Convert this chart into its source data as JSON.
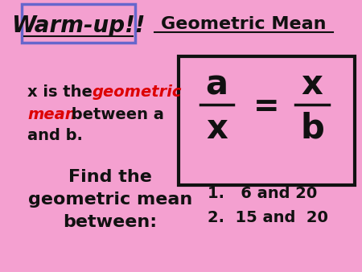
{
  "bg_color": "#F4A0D0",
  "title_warmup": "Warm-up!!",
  "title_geomean": "Geometric Mean",
  "warmup_box_color": "#6666CC",
  "text_color": "#111111",
  "red_color": "#DD0000",
  "formula_box_color": "#111111",
  "left_block": "x is the geometric\nmean between a\nand b.",
  "find_text": "Find the\ngeometric mean\nbetween:",
  "items": [
    "1.   6 and 20",
    "2.  15 and  20"
  ],
  "formula_a": "a",
  "formula_x_top": "x",
  "formula_x_bot": "x",
  "formula_b": "b",
  "formula_eq": "=",
  "figsize": [
    4.5,
    3.38
  ],
  "dpi": 100
}
